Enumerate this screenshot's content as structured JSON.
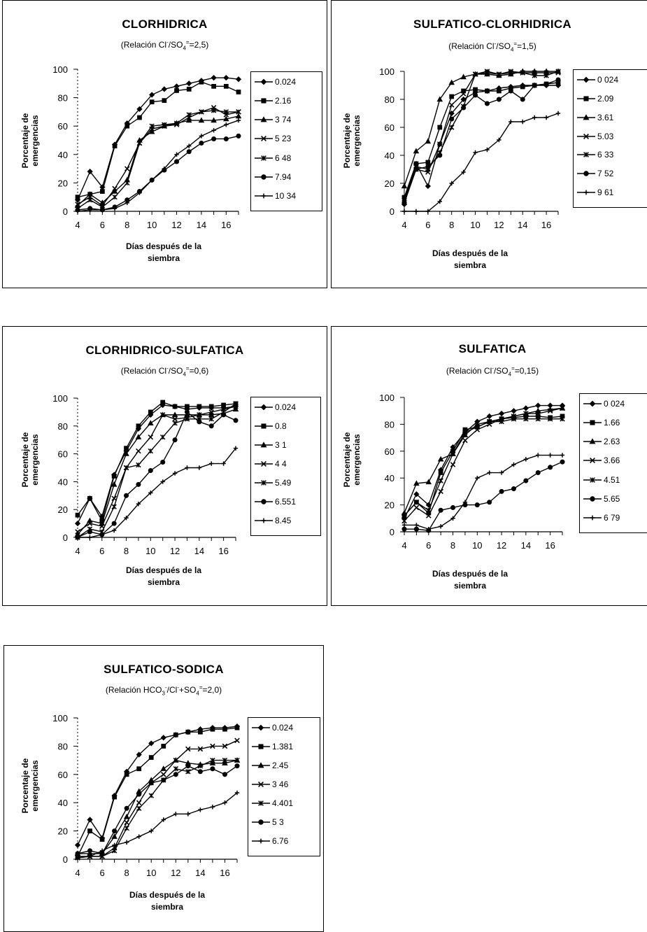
{
  "chart_data": [
    {
      "type": "line",
      "title": "CLORHIDRICA",
      "subtitle": "(Relación Cl⁻/SO₄⁼=2,5)",
      "subtitle_parts": [
        "(Relación Cl",
        "-",
        "/SO",
        "4",
        "=",
        "=2,5)"
      ],
      "xlabel": "Días después de la siembra",
      "xlabel_lines": [
        "Días después de la",
        "siembra"
      ],
      "ylabel": "Porcentaje de emergencias",
      "ylabel_lines": [
        "Porcentaje de",
        "emergencias"
      ],
      "xlim": [
        4,
        17
      ],
      "xticks": [
        4,
        6,
        8,
        10,
        12,
        14,
        16
      ],
      "ylim": [
        0,
        100
      ],
      "yticks": [
        0,
        20,
        40,
        60,
        80,
        100
      ],
      "yticks_style": "dash",
      "grid": false,
      "legend_position": "right",
      "x": [
        4,
        5,
        6,
        7,
        8,
        9,
        10,
        11,
        12,
        13,
        14,
        15,
        16,
        17
      ],
      "series": [
        {
          "name": "0.024",
          "marker": "diamond",
          "values": [
            8,
            28,
            17,
            47,
            62,
            72,
            82,
            86,
            88,
            90,
            92,
            94,
            94,
            93
          ]
        },
        {
          "name": "2.16",
          "marker": "square",
          "values": [
            10,
            12,
            14,
            46,
            60,
            66,
            77,
            78,
            85,
            86,
            91,
            88,
            88,
            84
          ]
        },
        {
          "name": "3 74",
          "marker": "triangle",
          "values": [
            4,
            12,
            6,
            14,
            22,
            50,
            56,
            60,
            62,
            64,
            64,
            64,
            65,
            67
          ]
        },
        {
          "name": "5 23",
          "marker": "x",
          "values": [
            5,
            10,
            4,
            16,
            30,
            48,
            58,
            60,
            61,
            66,
            70,
            73,
            68,
            70
          ]
        },
        {
          "name": "6 48",
          "marker": "asterisk",
          "values": [
            2,
            8,
            3,
            10,
            20,
            48,
            60,
            61,
            62,
            68,
            70,
            71,
            70,
            70
          ]
        },
        {
          "name": "7.94",
          "marker": "circle",
          "values": [
            1,
            2,
            1,
            3,
            8,
            14,
            22,
            29,
            35,
            42,
            48,
            51,
            51,
            53
          ]
        },
        {
          "name": "10 34",
          "marker": "plus",
          "values": [
            0,
            1,
            1,
            2,
            6,
            13,
            22,
            30,
            40,
            46,
            53,
            57,
            61,
            64
          ]
        }
      ]
    },
    {
      "type": "line",
      "title": "SULFATICO-CLORHIDRICA",
      "subtitle": "(Relación Cl⁻/SO₄⁼=1,5)",
      "subtitle_parts": [
        "(Relación Cl",
        "-",
        "/SO",
        "4",
        "=",
        "=1,5)"
      ],
      "xlabel": "Días después de la siembra",
      "xlabel_lines": [
        "Días después de la",
        "siembra"
      ],
      "ylabel": "Porcentaje de emergencias",
      "ylabel_lines": [
        "Porcentaje de",
        "emergencias"
      ],
      "xlim": [
        4,
        17
      ],
      "xticks": [
        4,
        6,
        8,
        10,
        12,
        14,
        16
      ],
      "ylim": [
        0,
        100
      ],
      "yticks": [
        0,
        20,
        40,
        60,
        80,
        100
      ],
      "yticks_style": "line",
      "grid": false,
      "legend_position": "right",
      "x": [
        4,
        5,
        6,
        7,
        8,
        9,
        10,
        11,
        12,
        13,
        14,
        15,
        16,
        17
      ],
      "series": [
        {
          "name": "0 024",
          "marker": "diamond",
          "values": [
            5,
            34,
            18,
            48,
            70,
            80,
            85,
            86,
            88,
            89,
            90,
            90,
            90,
            90
          ]
        },
        {
          "name": "2.09",
          "marker": "square",
          "values": [
            10,
            34,
            35,
            60,
            82,
            86,
            87,
            86,
            86,
            88,
            89,
            90,
            91,
            92
          ]
        },
        {
          "name": "3.61",
          "marker": "triangle",
          "values": [
            18,
            43,
            50,
            80,
            92,
            96,
            98,
            98,
            97,
            98,
            100,
            100,
            100,
            100
          ]
        },
        {
          "name": "5.03",
          "marker": "x",
          "values": [
            8,
            30,
            28,
            48,
            76,
            84,
            98,
            99,
            98,
            99,
            99,
            99,
            99,
            99
          ]
        },
        {
          "name": "6 33",
          "marker": "asterisk",
          "values": [
            9,
            32,
            30,
            42,
            60,
            75,
            98,
            100,
            98,
            100,
            99,
            97,
            97,
            100
          ]
        },
        {
          "name": "7 52",
          "marker": "circle",
          "values": [
            6,
            30,
            32,
            40,
            66,
            74,
            83,
            77,
            80,
            86,
            80,
            90,
            91,
            94
          ]
        },
        {
          "name": "9 61",
          "marker": "plus",
          "values": [
            0,
            0,
            0,
            7,
            20,
            28,
            42,
            44,
            51,
            64,
            64,
            67,
            67,
            70
          ]
        }
      ]
    },
    {
      "type": "line",
      "title": "CLORHIDRICO-SULFATICA",
      "subtitle": "(Relación Cl⁻/SO₄⁼=0,6)",
      "subtitle_parts": [
        "(Relación Cl",
        "-",
        "/SO",
        "4",
        "=",
        "=0,6)"
      ],
      "xlabel": "Días después de la siembra",
      "xlabel_lines": [
        "Días después de la",
        "siembra"
      ],
      "ylabel": "Porcentaje de emergencias",
      "ylabel_lines": [
        "Porcentaje de",
        "emergencias"
      ],
      "xlim": [
        4,
        17
      ],
      "xticks": [
        4,
        6,
        8,
        10,
        12,
        14,
        16
      ],
      "ylim": [
        0,
        100
      ],
      "yticks": [
        0,
        20,
        40,
        60,
        80,
        100
      ],
      "yticks_style": "dash",
      "grid": false,
      "legend_position": "right",
      "x": [
        4,
        5,
        6,
        7,
        8,
        9,
        10,
        11,
        12,
        13,
        14,
        15,
        16,
        17
      ],
      "series": [
        {
          "name": "0.024",
          "marker": "diamond",
          "values": [
            10,
            28,
            15,
            45,
            62,
            78,
            88,
            95,
            94,
            92,
            93,
            93,
            93,
            94
          ]
        },
        {
          "name": "0.8",
          "marker": "square",
          "values": [
            16,
            28,
            12,
            44,
            64,
            80,
            90,
            97,
            94,
            94,
            94,
            94,
            95,
            96
          ]
        },
        {
          "name": "3 1",
          "marker": "triangle",
          "values": [
            2,
            12,
            10,
            38,
            60,
            72,
            82,
            88,
            88,
            88,
            88,
            88,
            89,
            92
          ]
        },
        {
          "name": "4 4",
          "marker": "x",
          "values": [
            4,
            10,
            8,
            28,
            50,
            62,
            72,
            88,
            85,
            86,
            88,
            90,
            92,
            94
          ]
        },
        {
          "name": "5.49",
          "marker": "asterisk",
          "values": [
            0,
            6,
            4,
            22,
            50,
            52,
            62,
            72,
            82,
            85,
            85,
            85,
            90,
            96
          ]
        },
        {
          "name": "6.551",
          "marker": "circle",
          "values": [
            0,
            4,
            2,
            10,
            30,
            38,
            48,
            54,
            70,
            90,
            83,
            80,
            88,
            84
          ]
        },
        {
          "name": "8.45",
          "marker": "plus",
          "values": [
            0,
            0,
            2,
            5,
            14,
            24,
            32,
            40,
            46,
            50,
            50,
            53,
            53,
            64
          ]
        }
      ]
    },
    {
      "type": "line",
      "title": "SULFATICA",
      "subtitle": "(Relación Cl⁻/SO₄⁼=0,15)",
      "subtitle_parts": [
        "(Relación Cl",
        "-",
        "/SO",
        "4",
        "=",
        "=0,15)"
      ],
      "xlabel": "Días después de la siembra",
      "xlabel_lines": [
        "Días después de la",
        "siembra"
      ],
      "ylabel": "Porcentaje de emergencias",
      "ylabel_lines": [
        "Porcentaje de",
        "emergencias"
      ],
      "xlim": [
        4,
        17
      ],
      "xticks": [
        4,
        6,
        8,
        10,
        12,
        14,
        16
      ],
      "ylim": [
        0,
        100
      ],
      "yticks": [
        0,
        20,
        40,
        60,
        80,
        100
      ],
      "yticks_style": "line",
      "grid": false,
      "legend_position": "right",
      "x": [
        4,
        5,
        6,
        7,
        8,
        9,
        10,
        11,
        12,
        13,
        14,
        15,
        16,
        17
      ],
      "series": [
        {
          "name": "0 024",
          "marker": "diamond",
          "values": [
            10,
            28,
            20,
            46,
            63,
            74,
            82,
            86,
            88,
            90,
            92,
            94,
            94,
            94
          ]
        },
        {
          "name": "1.66",
          "marker": "square",
          "values": [
            12,
            22,
            14,
            44,
            60,
            76,
            78,
            82,
            84,
            85,
            86,
            86,
            85,
            86
          ]
        },
        {
          "name": "2.63",
          "marker": "triangle",
          "values": [
            14,
            36,
            37,
            54,
            58,
            72,
            80,
            82,
            84,
            86,
            88,
            90,
            91,
            92
          ]
        },
        {
          "name": "3.66",
          "marker": "x",
          "values": [
            8,
            18,
            12,
            30,
            50,
            68,
            76,
            80,
            84,
            86,
            88,
            88,
            90,
            92
          ]
        },
        {
          "name": "4.51",
          "marker": "asterisk",
          "values": [
            12,
            22,
            16,
            38,
            58,
            74,
            78,
            82,
            82,
            84,
            84,
            84,
            84,
            84
          ]
        },
        {
          "name": "5.65",
          "marker": "circle",
          "values": [
            2,
            2,
            1,
            16,
            18,
            20,
            20,
            22,
            30,
            32,
            38,
            44,
            48,
            52
          ]
        },
        {
          "name": "6 79",
          "marker": "plus",
          "values": [
            5,
            5,
            2,
            4,
            10,
            22,
            40,
            44,
            44,
            50,
            54,
            57,
            57,
            57
          ]
        }
      ]
    },
    {
      "type": "line",
      "title": "SULFATICO-SODICA",
      "subtitle": "(Relación HCO₃⁻/Cl⁻+SO₄⁼=2,0)",
      "subtitle_parts": [
        "(Relación HCO",
        "3",
        "-",
        "/Cl",
        "-",
        "+SO",
        "4",
        "=",
        "=2,0)"
      ],
      "xlabel": "Días después de la siembra",
      "xlabel_lines": [
        "Días después de la",
        "siembra"
      ],
      "ylabel": "Porcentaje de emergencias",
      "ylabel_lines": [
        "Porcentaje de",
        "emergencias"
      ],
      "xlim": [
        4,
        17
      ],
      "xticks": [
        4,
        6,
        8,
        10,
        12,
        14,
        16
      ],
      "ylim": [
        0,
        100
      ],
      "yticks": [
        0,
        20,
        40,
        60,
        80,
        100
      ],
      "yticks_style": "dash",
      "grid": false,
      "legend_position": "right",
      "x": [
        4,
        5,
        6,
        7,
        8,
        9,
        10,
        11,
        12,
        13,
        14,
        15,
        16,
        17
      ],
      "series": [
        {
          "name": "0.024",
          "marker": "diamond",
          "values": [
            10,
            28,
            15,
            45,
            62,
            74,
            82,
            86,
            88,
            90,
            92,
            93,
            93,
            94
          ]
        },
        {
          "name": "1.381",
          "marker": "square",
          "values": [
            2,
            20,
            14,
            44,
            60,
            64,
            72,
            80,
            88,
            90,
            90,
            92,
            92,
            93
          ]
        },
        {
          "name": "2.45",
          "marker": "triangle",
          "values": [
            4,
            4,
            4,
            16,
            30,
            48,
            56,
            64,
            70,
            68,
            67,
            68,
            68,
            70
          ]
        },
        {
          "name": "3 46",
          "marker": "x",
          "values": [
            2,
            2,
            2,
            8,
            26,
            40,
            54,
            60,
            70,
            78,
            78,
            80,
            80,
            84
          ]
        },
        {
          "name": "4.401",
          "marker": "asterisk",
          "values": [
            1,
            2,
            2,
            6,
            22,
            36,
            45,
            56,
            64,
            62,
            66,
            70,
            70,
            70
          ]
        },
        {
          "name": "5 3",
          "marker": "circle",
          "values": [
            4,
            6,
            4,
            20,
            36,
            46,
            54,
            56,
            60,
            66,
            62,
            64,
            60,
            66
          ]
        },
        {
          "name": "6.76",
          "marker": "plus",
          "values": [
            1,
            2,
            6,
            10,
            12,
            16,
            20,
            28,
            32,
            32,
            35,
            37,
            40,
            47
          ]
        }
      ]
    }
  ]
}
